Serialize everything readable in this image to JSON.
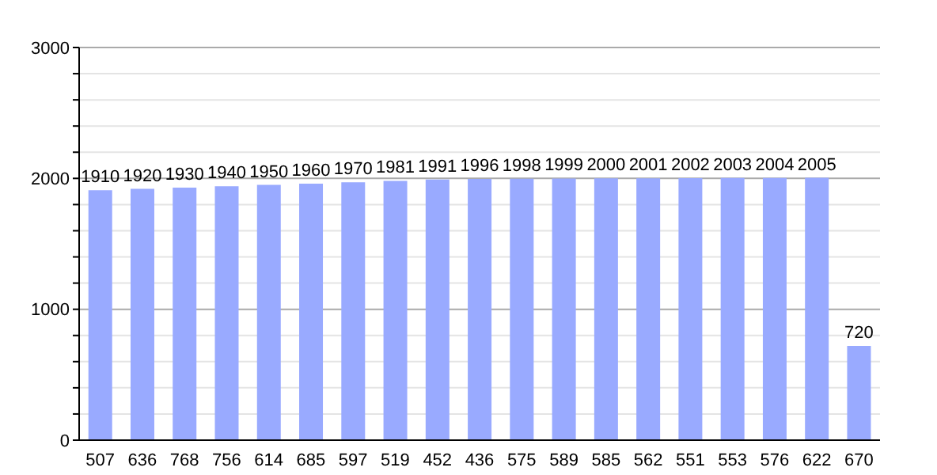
{
  "chart_data": {
    "type": "bar",
    "categories": [
      "507",
      "636",
      "768",
      "756",
      "614",
      "685",
      "597",
      "519",
      "452",
      "436",
      "575",
      "589",
      "585",
      "562",
      "551",
      "553",
      "576",
      "622",
      "670"
    ],
    "values": [
      1910,
      1920,
      1930,
      1940,
      1950,
      1960,
      1970,
      1981,
      1991,
      1996,
      1998,
      1999,
      2000,
      2001,
      2002,
      2003,
      2004,
      2005,
      720
    ],
    "color": "#99aaff",
    "data_labels": true,
    "ylim": [
      0,
      3000
    ],
    "yticks": [
      0,
      {
        "value": 200,
        "label": null
      },
      {
        "value": 400,
        "label": null
      },
      {
        "value": 600,
        "label": null
      },
      {
        "value": 800,
        "label": null
      },
      1000,
      {
        "value": 1200,
        "label": null
      },
      {
        "value": 1400,
        "label": null
      },
      {
        "value": 1600,
        "label": null
      },
      {
        "value": 1800,
        "label": null
      },
      2000,
      {
        "value": 2200,
        "label": null
      },
      {
        "value": 2400,
        "label": null
      },
      {
        "value": 2600,
        "label": null
      },
      {
        "value": 2800,
        "label": null
      },
      3000
    ],
    "grid": "y"
  }
}
